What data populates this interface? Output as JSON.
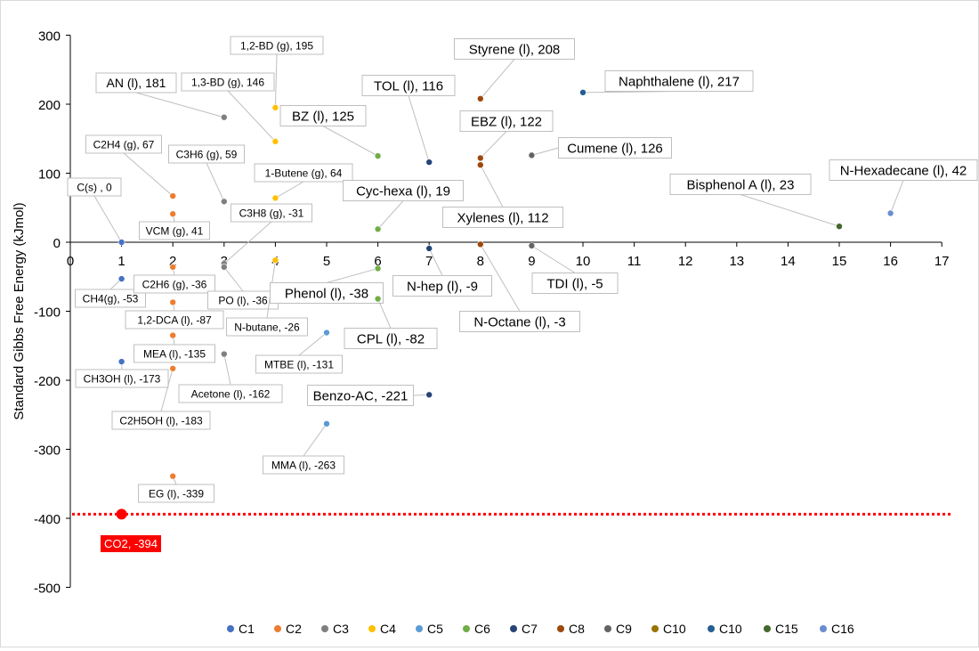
{
  "chart_data": {
    "type": "scatter",
    "title": "",
    "xlabel": "",
    "ylabel": "Standard Gibbs Free Energy (kJmol)",
    "xlim": [
      0,
      17
    ],
    "ylim": [
      -500,
      300
    ],
    "xticks": [
      "0",
      "1",
      "2",
      "3",
      "4",
      "5",
      "6",
      "7",
      "8",
      "9",
      "10",
      "11",
      "12",
      "13",
      "14",
      "15",
      "16",
      "17"
    ],
    "yticks": [
      "300",
      "200",
      "100",
      "0",
      "-100",
      "-200",
      "-300",
      "-400",
      "-500"
    ],
    "grid": false,
    "legend_position": "bottom",
    "reference_line": {
      "y": -394,
      "color": "#ff0000",
      "style": "dotted"
    },
    "series": [
      {
        "name": "C1",
        "color": "#4472c4",
        "points": [
          {
            "x": 1,
            "y": 0,
            "label": "C(s) , 0"
          },
          {
            "x": 1,
            "y": -53,
            "label": "CH4(g), -53"
          },
          {
            "x": 1,
            "y": -173,
            "label": "CH3OH (l), -173"
          }
        ]
      },
      {
        "name": "C2",
        "color": "#ed7d31",
        "points": [
          {
            "x": 2,
            "y": 67,
            "label": "C2H4 (g), 67"
          },
          {
            "x": 2,
            "y": 41,
            "label": "VCM (g), 41"
          },
          {
            "x": 2,
            "y": -36,
            "label": "C2H6 (g), -36"
          },
          {
            "x": 2,
            "y": -87,
            "label": "1,2-DCA (l), -87"
          },
          {
            "x": 2,
            "y": -135,
            "label": "MEA (l), -135"
          },
          {
            "x": 2,
            "y": -183,
            "label": "C2H5OH (l), -183"
          },
          {
            "x": 2,
            "y": -339,
            "label": "EG (l), -339"
          }
        ]
      },
      {
        "name": "C3",
        "color": "#7f7f7f",
        "points": [
          {
            "x": 3,
            "y": 181,
            "label": "AN (l), 181"
          },
          {
            "x": 3,
            "y": 59,
            "label": "C3H6 (g), 59"
          },
          {
            "x": 3,
            "y": -31,
            "label": "C3H8 (g), -31"
          },
          {
            "x": 3,
            "y": -36,
            "label": "PO (l), -36"
          },
          {
            "x": 3,
            "y": -162,
            "label": "Acetone (l), -162"
          }
        ]
      },
      {
        "name": "C4",
        "color": "#ffc000",
        "points": [
          {
            "x": 4,
            "y": 195,
            "label": "1,2-BD (g), 195"
          },
          {
            "x": 4,
            "y": 146,
            "label": "1,3-BD (g), 146"
          },
          {
            "x": 4,
            "y": 64,
            "label": "1-Butene (g), 64"
          },
          {
            "x": 4,
            "y": -26,
            "label": "N-butane, -26"
          }
        ]
      },
      {
        "name": "C5",
        "color": "#5b9bd5",
        "points": [
          {
            "x": 5,
            "y": -131,
            "label": "MTBE (l), -131"
          },
          {
            "x": 5,
            "y": -263,
            "label": "MMA (l), -263"
          }
        ]
      },
      {
        "name": "C6",
        "color": "#70ad47",
        "points": [
          {
            "x": 6,
            "y": 125,
            "label": "BZ (l), 125"
          },
          {
            "x": 6,
            "y": 19,
            "label": "Cyc-hexa (l), 19"
          },
          {
            "x": 6,
            "y": -38,
            "label": "Phenol (l), -38"
          },
          {
            "x": 6,
            "y": -82,
            "label": "CPL (l), -82"
          }
        ]
      },
      {
        "name": "C7",
        "color": "#264478",
        "points": [
          {
            "x": 7,
            "y": 116,
            "label": "TOL (l), 116"
          },
          {
            "x": 7,
            "y": -9,
            "label": "N-hep (l), -9"
          },
          {
            "x": 7,
            "y": -221,
            "label": "Benzo-AC, -221"
          }
        ]
      },
      {
        "name": "C8",
        "color": "#9e480e",
        "points": [
          {
            "x": 8,
            "y": 208,
            "label": "Styrene (l), 208"
          },
          {
            "x": 8,
            "y": 122,
            "label": "EBZ (l), 122"
          },
          {
            "x": 8,
            "y": 112,
            "label": "Xylenes (l), 112"
          },
          {
            "x": 8,
            "y": -3,
            "label": "N-Octane (l), -3"
          }
        ]
      },
      {
        "name": "C9",
        "color": "#636363",
        "points": [
          {
            "x": 9,
            "y": 126,
            "label": "Cumene (l), 126"
          },
          {
            "x": 9,
            "y": -5,
            "label": "TDI (l), -5"
          }
        ]
      },
      {
        "name": "C10",
        "color": "#997300",
        "points": []
      },
      {
        "name": "C10",
        "color": "#255e91",
        "points": [
          {
            "x": 10,
            "y": 217,
            "label": "Naphthalene (l), 217"
          }
        ]
      },
      {
        "name": "C15",
        "color": "#43682b",
        "points": [
          {
            "x": 15,
            "y": 23,
            "label": "Bisphenol A (l), 23"
          }
        ]
      },
      {
        "name": "C16",
        "color": "#698ed0",
        "points": [
          {
            "x": 16,
            "y": 42,
            "label": "N-Hexadecane (l), 42"
          }
        ]
      }
    ],
    "highlight": {
      "x": 1,
      "y": -394,
      "label": "CO2, -394",
      "color": "#ff0000"
    }
  }
}
